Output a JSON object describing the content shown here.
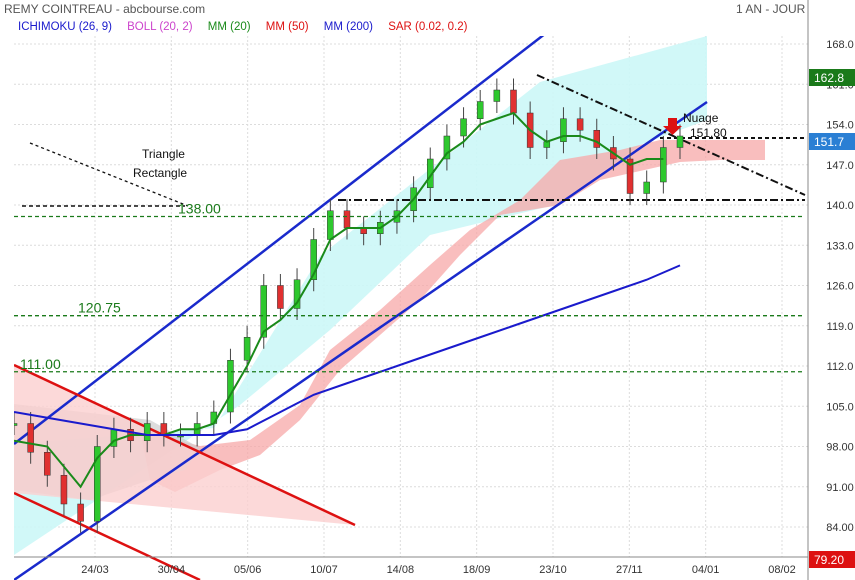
{
  "header": {
    "title": "REMY COINTREAU - abcbourse.com",
    "period": "1 AN - JOUR"
  },
  "legend": [
    {
      "label": "ICHIMOKU (26, 9)",
      "color": "#1a1acc"
    },
    {
      "label": "BOLL (20, 2)",
      "color": "#cc44cc"
    },
    {
      "label": "MM (20)",
      "color": "#1a8a1a"
    },
    {
      "label": "MM (50)",
      "color": "#dd1111"
    },
    {
      "label": "MM (200)",
      "color": "#1a1acc"
    },
    {
      "label": "SAR (0.02, 0.2)",
      "color": "#dd1111"
    }
  ],
  "price_tags": {
    "top": {
      "label": "162.8",
      "color": "#1a7a1a"
    },
    "last": {
      "label": "151.7",
      "color": "#2a7fd4"
    },
    "bottom": {
      "label": "79.20",
      "color": "#dd1111"
    }
  },
  "annotations": {
    "triangle_line1": "Triangle",
    "triangle_line2": "Rectangle",
    "nuage_label": "Nuage",
    "nuage_value": "151.80"
  },
  "levels": [
    {
      "label": "138.00",
      "value": 138.0
    },
    {
      "label": "120.75",
      "value": 120.75
    },
    {
      "label": "111.00",
      "value": 111.0
    }
  ],
  "chart_data": {
    "type": "line",
    "title": "REMY COINTREAU - abcbourse.com",
    "y_ticks": [
      84.0,
      91.0,
      98.0,
      105.0,
      112.0,
      119.0,
      126.0,
      133.0,
      140.0,
      147.0,
      154.0,
      161.0,
      168.0
    ],
    "y_tick_labels": [
      "84.00",
      "91.00",
      "98.00",
      "105.0",
      "112.0",
      "119.0",
      "126.0",
      "133.0",
      "140.0",
      "147.0",
      "154.0",
      "161.0",
      "168.0"
    ],
    "ylim": [
      79.2,
      171.5
    ],
    "x_labels": [
      "24/03",
      "30/04",
      "05/06",
      "10/07",
      "14/08",
      "18/09",
      "23/10",
      "27/11",
      "04/01",
      "08/02"
    ],
    "xlim": [
      0,
      95
    ],
    "x_label_pos": [
      10,
      19,
      28,
      37,
      46,
      55,
      64,
      73,
      82,
      91
    ],
    "grid": true,
    "series": [
      {
        "type": "price",
        "color": "#1a9a1a",
        "x": [
          0,
          2,
          4,
          6,
          8,
          10,
          12,
          14,
          16,
          18,
          20,
          22,
          24,
          26,
          28,
          30,
          32,
          34,
          36,
          38,
          40,
          42,
          44,
          46,
          48,
          50,
          52,
          54,
          56,
          58,
          60,
          62,
          64,
          66,
          68,
          70,
          72,
          74,
          76,
          78,
          80
        ],
        "values": [
          102,
          97,
          93,
          88,
          85,
          98,
          101,
          99,
          102,
          100,
          100,
          102,
          104,
          113,
          117,
          126,
          122,
          127,
          134,
          139,
          136,
          135,
          137,
          139,
          143,
          148,
          152,
          155,
          158,
          160,
          156,
          150,
          151,
          155,
          153,
          150,
          148,
          142,
          144,
          150,
          152
        ]
      },
      {
        "type": "mm20",
        "color": "#1a8a1a",
        "x": [
          0,
          4,
          8,
          10,
          12,
          14,
          16,
          18,
          20,
          22,
          24,
          26,
          28,
          30,
          32,
          34,
          36,
          38,
          40,
          42,
          44,
          46,
          48,
          50,
          52,
          54,
          56,
          58,
          60,
          62,
          64,
          66,
          68,
          70,
          72,
          74,
          76,
          78
        ],
        "values": [
          99,
          98,
          91,
          96,
          99,
          100,
          100,
          100,
          101,
          101,
          102,
          107,
          112,
          118,
          120,
          123,
          128,
          134,
          136,
          136,
          136,
          138,
          141,
          145,
          149,
          151,
          154,
          155,
          156,
          153,
          151,
          152,
          152,
          151,
          149,
          147,
          148,
          148
        ]
      },
      {
        "type": "mm200",
        "color": "#1a1acc",
        "x": [
          0,
          4,
          8,
          12,
          16,
          20,
          24,
          28,
          32,
          36,
          40,
          44,
          48,
          52,
          56,
          60,
          64,
          68,
          72,
          76,
          80
        ],
        "values": [
          104,
          103,
          102,
          101,
          100,
          100,
          100,
          101,
          104,
          107,
          109,
          111,
          113,
          115,
          117,
          119,
          121,
          123,
          125,
          127,
          129.5
        ]
      }
    ]
  }
}
